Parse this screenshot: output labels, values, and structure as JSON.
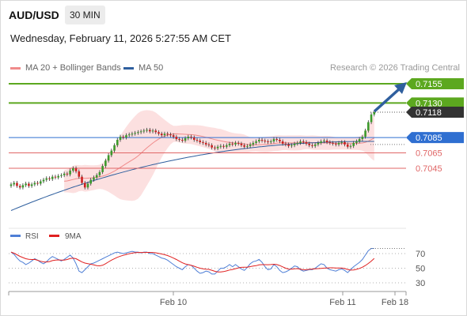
{
  "header": {
    "symbol": "AUD/USD",
    "timeframe": "30 MIN",
    "datetime": "Wednesday, February 11, 2026 5:27:55 AM CET"
  },
  "legend": {
    "items": [
      {
        "label": "MA 20 + Bollinger Bands",
        "color": "#f08b8b"
      },
      {
        "label": "MA 50",
        "color": "#2f5f9e"
      }
    ],
    "credit": "Research © 2026 Trading Central"
  },
  "colors": {
    "resistance": "#5ca81f",
    "pivot": "#2f6fd1",
    "support": "#e06666",
    "current": "#333333",
    "arrow": "#2f5f9e",
    "candle_up": "#3c9a2c",
    "candle_down": "#cc2020"
  },
  "chart_data": [
    {
      "type": "candlestick",
      "title": "AUD/USD",
      "timeframe": "30 MIN",
      "ylim": [
        0.698,
        0.7175
      ],
      "x_tick_labels": [
        "Feb 10",
        "Feb 11",
        "Feb 18"
      ],
      "levels": [
        {
          "value": 0.7155,
          "label": "0.7155",
          "kind": "resistance"
        },
        {
          "value": 0.713,
          "label": "0.7130",
          "kind": "resistance"
        },
        {
          "value": 0.7118,
          "label": "0.7118",
          "kind": "current"
        },
        {
          "value": 0.7085,
          "label": "0.7085",
          "kind": "pivot"
        },
        {
          "value": 0.7065,
          "label": "0.7065",
          "kind": "support"
        },
        {
          "value": 0.7045,
          "label": "0.7045",
          "kind": "support"
        }
      ],
      "series_names": [
        "MA 20 + Bollinger Bands",
        "MA 50"
      ],
      "close": [
        0.7024,
        0.7026,
        0.7022,
        0.702,
        0.7023,
        0.7025,
        0.7022,
        0.7024,
        0.7026,
        0.7025,
        0.7028,
        0.703,
        0.7032,
        0.7031,
        0.7034,
        0.7033,
        0.7035,
        0.7036,
        0.7038,
        0.7037,
        0.7042,
        0.7045,
        0.7041,
        0.7034,
        0.7026,
        0.702,
        0.7025,
        0.703,
        0.7033,
        0.7036,
        0.704,
        0.7048,
        0.7055,
        0.7062,
        0.7068,
        0.7075,
        0.7082,
        0.7086,
        0.7085,
        0.7088,
        0.7089,
        0.709,
        0.7091,
        0.7092,
        0.7093,
        0.7094,
        0.7095,
        0.7093,
        0.7094,
        0.7092,
        0.709,
        0.7088,
        0.709,
        0.7089,
        0.7088,
        0.7086,
        0.7083,
        0.7082,
        0.7081,
        0.7084,
        0.7086,
        0.7085,
        0.7082,
        0.7081,
        0.7079,
        0.7078,
        0.7076,
        0.7075,
        0.7072,
        0.7071,
        0.7073,
        0.7074,
        0.7073,
        0.7075,
        0.7077,
        0.7076,
        0.7078,
        0.7077,
        0.7075,
        0.7073,
        0.7074,
        0.7076,
        0.7078,
        0.708,
        0.7082,
        0.7081,
        0.708,
        0.7079,
        0.708,
        0.7083,
        0.7082,
        0.708,
        0.7077,
        0.7076,
        0.7074,
        0.7075,
        0.7077,
        0.7078,
        0.708,
        0.7079,
        0.7077,
        0.7075,
        0.7074,
        0.7076,
        0.7078,
        0.708,
        0.7081,
        0.7079,
        0.7078,
        0.7077,
        0.7076,
        0.7078,
        0.7079,
        0.7076,
        0.7073,
        0.7074,
        0.7078,
        0.708,
        0.7083,
        0.7086,
        0.7094,
        0.7105,
        0.7115,
        0.7118
      ],
      "ma50_start_end": [
        0.699,
        0.708
      ],
      "rsi": {
        "name": "RSI",
        "ma_name": "9MA",
        "levels": [
          70,
          50,
          30
        ],
        "ylim": [
          20,
          80
        ],
        "values": [
          72,
          69,
          64,
          60,
          58,
          55,
          57,
          60,
          63,
          61,
          58,
          56,
          59,
          63,
          66,
          64,
          62,
          60,
          62,
          65,
          68,
          64,
          56,
          46,
          44,
          48,
          52,
          56,
          57,
          59,
          61,
          63,
          65,
          67,
          69,
          71,
          72,
          71,
          70,
          71,
          72,
          73,
          72,
          72,
          71,
          72,
          72,
          70,
          70,
          68,
          66,
          64,
          63,
          61,
          58,
          55,
          52,
          50,
          48,
          52,
          55,
          54,
          50,
          46,
          43,
          44,
          46,
          45,
          42,
          42,
          46,
          50,
          50,
          52,
          55,
          52,
          55,
          52,
          49,
          47,
          51,
          56,
          59,
          60,
          62,
          58,
          52,
          48,
          49,
          55,
          52,
          47,
          44,
          45,
          47,
          50,
          53,
          52,
          48,
          46,
          47,
          48,
          48,
          50,
          53,
          56,
          55,
          50,
          48,
          47,
          46,
          48,
          49,
          47,
          44,
          48,
          52,
          55,
          58,
          62,
          68,
          74,
          77,
          77
        ]
      }
    }
  ]
}
